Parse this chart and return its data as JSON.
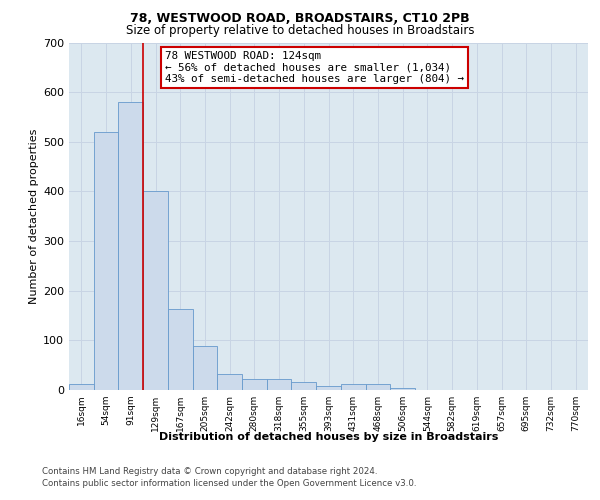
{
  "title1": "78, WESTWOOD ROAD, BROADSTAIRS, CT10 2PB",
  "title2": "Size of property relative to detached houses in Broadstairs",
  "xlabel": "Distribution of detached houses by size in Broadstairs",
  "ylabel": "Number of detached properties",
  "bar_labels": [
    "16sqm",
    "54sqm",
    "91sqm",
    "129sqm",
    "167sqm",
    "205sqm",
    "242sqm",
    "280sqm",
    "318sqm",
    "355sqm",
    "393sqm",
    "431sqm",
    "468sqm",
    "506sqm",
    "544sqm",
    "582sqm",
    "619sqm",
    "657sqm",
    "695sqm",
    "732sqm",
    "770sqm"
  ],
  "bar_values": [
    13,
    520,
    580,
    400,
    163,
    88,
    32,
    22,
    22,
    17,
    9,
    12,
    12,
    4,
    0,
    0,
    0,
    0,
    0,
    0,
    0
  ],
  "bar_color": "#ccdaeb",
  "bar_edge_color": "#6699cc",
  "vline_color": "#cc0000",
  "ylim": [
    0,
    700
  ],
  "yticks": [
    0,
    100,
    200,
    300,
    400,
    500,
    600,
    700
  ],
  "annotation_text": "78 WESTWOOD ROAD: 124sqm\n← 56% of detached houses are smaller (1,034)\n43% of semi-detached houses are larger (804) →",
  "annotation_box_color": "#ffffff",
  "annotation_box_edge": "#cc0000",
  "footer1": "Contains HM Land Registry data © Crown copyright and database right 2024.",
  "footer2": "Contains public sector information licensed under the Open Government Licence v3.0.",
  "grid_color": "#c8d4e4",
  "bg_color": "#dce8f0"
}
